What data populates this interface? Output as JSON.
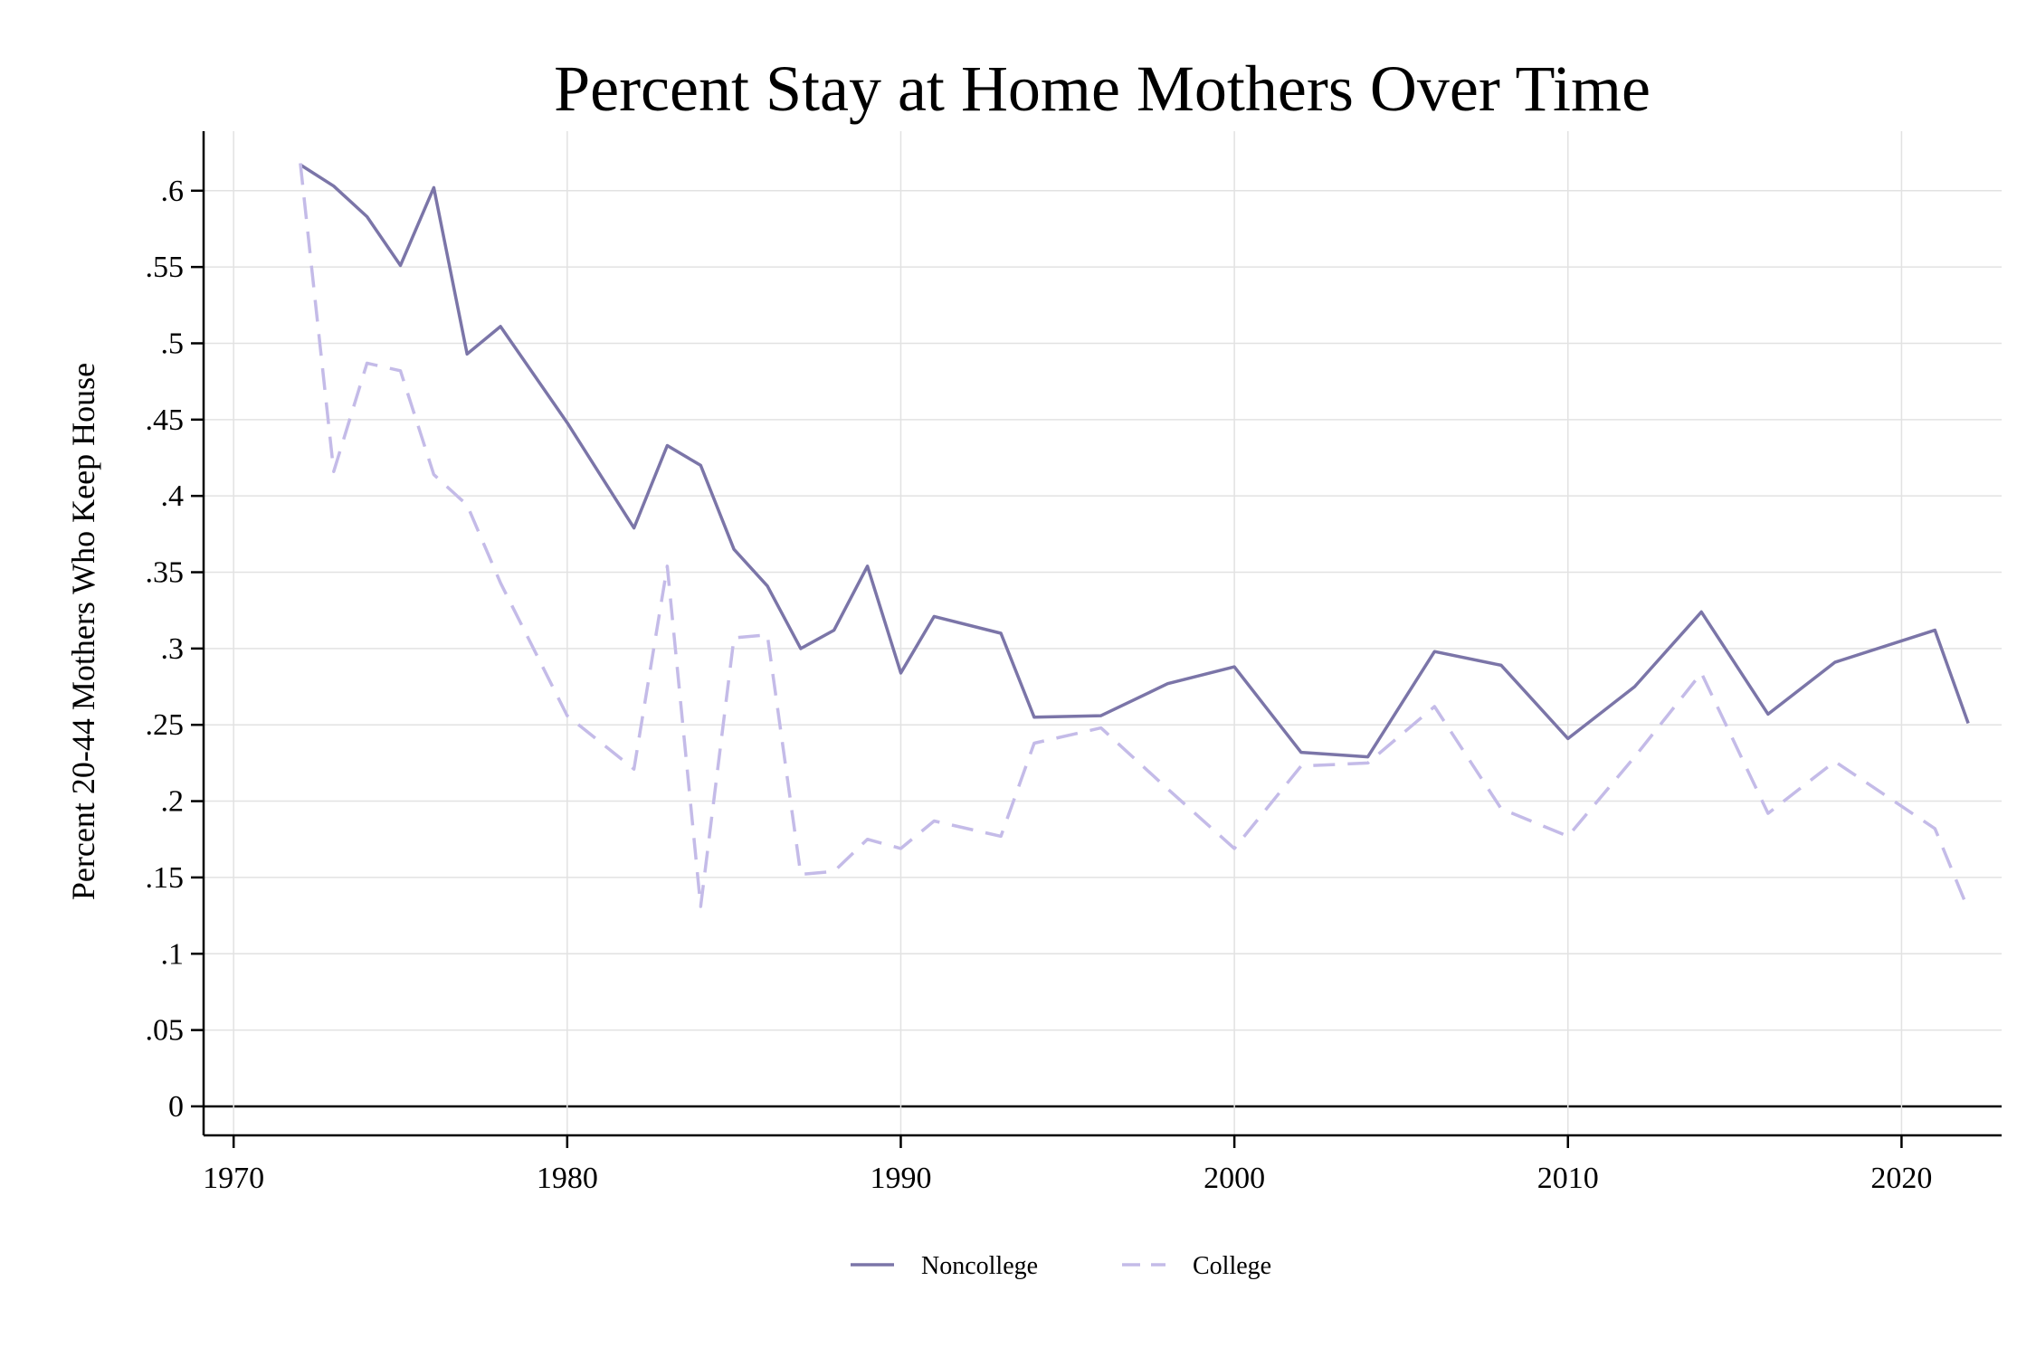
{
  "chart_data": {
    "type": "line",
    "title": "Percent Stay at Home Mothers Over Time",
    "xlabel": "",
    "ylabel": "Percent 20-44 Mothers Who Keep House",
    "xlim": [
      1969.1,
      2023
    ],
    "ylim": [
      -0.019,
      0.639
    ],
    "x_ticks": [
      1970,
      1980,
      1990,
      2000,
      2010,
      2020
    ],
    "y_ticks": [
      0,
      0.05,
      0.1,
      0.15,
      0.2,
      0.25,
      0.3,
      0.35,
      0.4,
      0.45,
      0.5,
      0.55,
      0.6
    ],
    "y_tick_labels": [
      "0",
      ".05",
      ".1",
      ".15",
      ".2",
      ".25",
      ".3",
      ".35",
      ".4",
      ".45",
      ".5",
      ".55",
      ".6"
    ],
    "grid": true,
    "legend_position": "bottom",
    "series": [
      {
        "name": "Noncollege",
        "color": "#7b75a8",
        "style": "solid",
        "x": [
          1972,
          1973,
          1974,
          1975,
          1976,
          1977,
          1978,
          1980,
          1982,
          1983,
          1984,
          1985,
          1986,
          1987,
          1988,
          1989,
          1990,
          1991,
          1993,
          1994,
          1996,
          1998,
          2000,
          2002,
          2004,
          2006,
          2008,
          2010,
          2012,
          2014,
          2016,
          2018,
          2021,
          2022
        ],
        "values": [
          0.617,
          0.603,
          0.583,
          0.551,
          0.602,
          0.493,
          0.511,
          0.448,
          0.379,
          0.433,
          0.42,
          0.365,
          0.341,
          0.3,
          0.312,
          0.354,
          0.284,
          0.321,
          0.31,
          0.255,
          0.256,
          0.277,
          0.288,
          0.232,
          0.229,
          0.298,
          0.289,
          0.241,
          0.275,
          0.324,
          0.257,
          0.291,
          0.312,
          0.251
        ]
      },
      {
        "name": "College",
        "color": "#c4bbe8",
        "style": "dashed",
        "x": [
          1972,
          1973,
          1974,
          1975,
          1976,
          1977,
          1978,
          1980,
          1982,
          1983,
          1984,
          1985,
          1986,
          1987,
          1988,
          1989,
          1990,
          1991,
          1993,
          1994,
          1996,
          1998,
          2000,
          2002,
          2004,
          2006,
          2008,
          2010,
          2012,
          2014,
          2016,
          2018,
          2021,
          2022
        ],
        "values": [
          0.618,
          0.416,
          0.487,
          0.482,
          0.414,
          0.394,
          0.343,
          0.256,
          0.221,
          0.354,
          0.131,
          0.307,
          0.309,
          0.152,
          0.154,
          0.175,
          0.169,
          0.187,
          0.177,
          0.238,
          0.248,
          0.208,
          0.169,
          0.223,
          0.225,
          0.262,
          0.195,
          0.177,
          0.229,
          0.284,
          0.192,
          0.226,
          0.182,
          0.129
        ]
      }
    ]
  }
}
